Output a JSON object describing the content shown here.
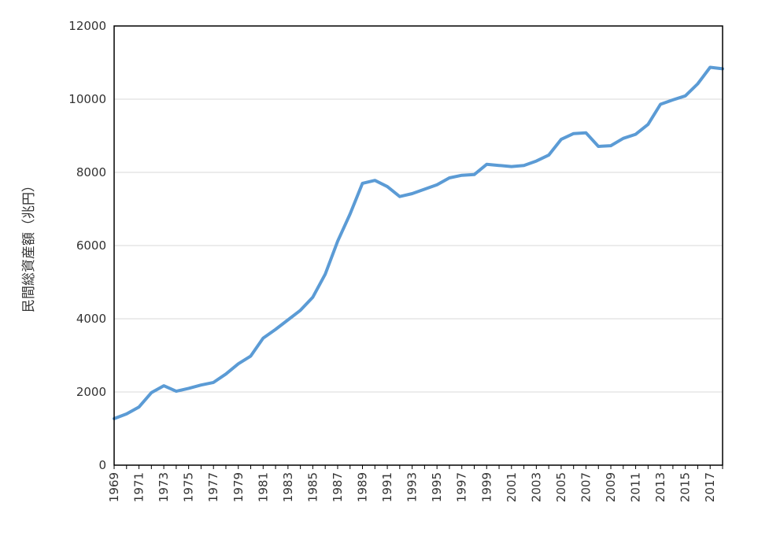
{
  "chart_data": {
    "type": "line",
    "title": "",
    "xlabel": "",
    "ylabel": "民間総資産額（兆円）",
    "ylim": [
      0,
      12000
    ],
    "yticks": [
      0,
      2000,
      4000,
      6000,
      8000,
      10000,
      12000
    ],
    "xlim": [
      1969,
      2018
    ],
    "xtick_labels": [
      "1969",
      "1971",
      "1973",
      "1975",
      "1977",
      "1979",
      "1981",
      "1983",
      "1985",
      "1987",
      "1989",
      "1991",
      "1993",
      "1995",
      "1997",
      "1999",
      "2001",
      "2003",
      "2005",
      "2007",
      "2009",
      "2011",
      "2013",
      "2015",
      "2017"
    ],
    "grid": "horizontal",
    "line_color": "#5b9bd5",
    "series": [
      {
        "x": [
          1969,
          1970,
          1971,
          1972,
          1973,
          1974,
          1975,
          1976,
          1977,
          1978,
          1979,
          1980,
          1981,
          1982,
          1983,
          1984,
          1985,
          1986,
          1987,
          1988,
          1989,
          1990,
          1991,
          1992,
          1993,
          1994,
          1995,
          1996,
          1997,
          1998,
          1999,
          2000,
          2001,
          2002,
          2003,
          2004,
          2005,
          2006,
          2007,
          2008,
          2009,
          2010,
          2011,
          2012,
          2013,
          2014,
          2015,
          2016,
          2017,
          2018
        ],
        "values": [
          1270,
          1400,
          1590,
          1980,
          2170,
          2020,
          2100,
          2190,
          2260,
          2490,
          2770,
          2980,
          3470,
          3710,
          3970,
          4230,
          4590,
          5220,
          6120,
          6860,
          7700,
          7780,
          7610,
          7340,
          7420,
          7540,
          7660,
          7850,
          7920,
          7940,
          8220,
          8190,
          8160,
          8190,
          8310,
          8470,
          8900,
          9060,
          9080,
          8710,
          8730,
          8930,
          9040,
          9310,
          9860,
          9980,
          10090,
          10420,
          10870,
          10830
        ]
      }
    ]
  }
}
